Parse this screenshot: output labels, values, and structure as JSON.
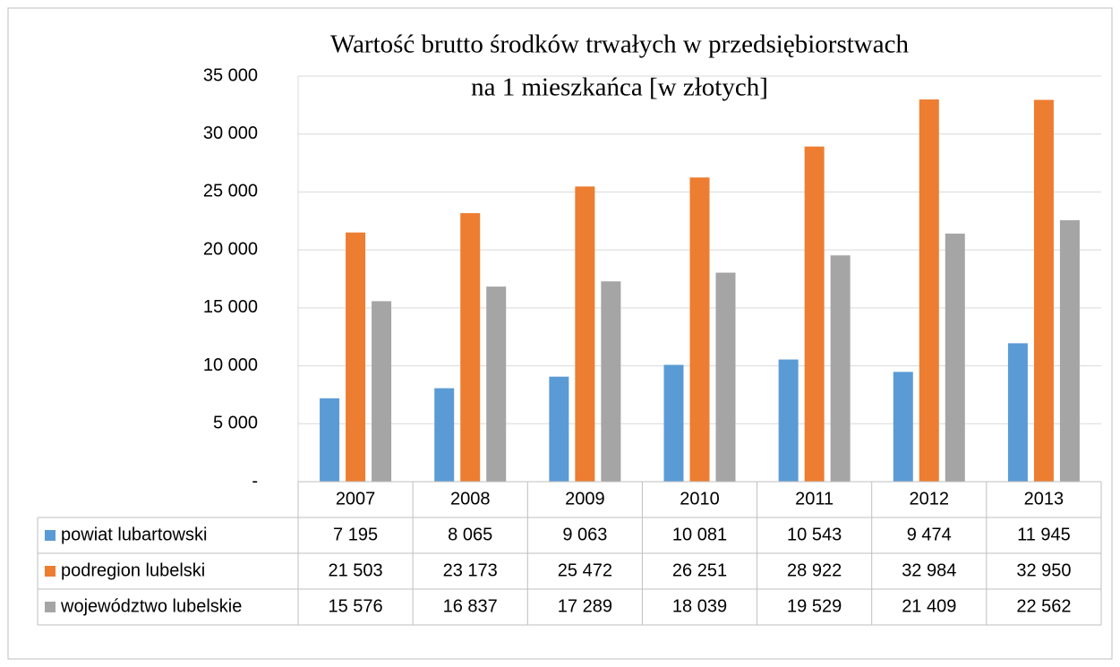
{
  "chart_data": {
    "type": "bar",
    "title": [
      "Wartość brutto środków trwałych w przedsiębiorstwach",
      "na 1 mieszkańca [w złotych]"
    ],
    "categories": [
      "2007",
      "2008",
      "2009",
      "2010",
      "2011",
      "2012",
      "2013"
    ],
    "series": [
      {
        "name": "powiat lubartowski",
        "color": "#5b9bd5",
        "values": [
          7195,
          8065,
          9063,
          10081,
          10543,
          9474,
          11945
        ],
        "value_labels": [
          "7 195",
          "8 065",
          "9 063",
          "10 081",
          "10 543",
          "9 474",
          "11 945"
        ]
      },
      {
        "name": "podregion lubelski",
        "color": "#ed7d31",
        "values": [
          21503,
          23173,
          25472,
          26251,
          28922,
          32984,
          32950
        ],
        "value_labels": [
          "21 503",
          "23 173",
          "25 472",
          "26 251",
          "28 922",
          "32 984",
          "32 950"
        ]
      },
      {
        "name": "województwo lubelskie",
        "color": "#a5a5a5",
        "values": [
          15576,
          16837,
          17289,
          18039,
          19529,
          21409,
          22562
        ],
        "value_labels": [
          "15 576",
          "16 837",
          "17 289",
          "18 039",
          "19 529",
          "21 409",
          "22 562"
        ]
      }
    ],
    "ylim": [
      0,
      35000
    ],
    "yticks": [
      {
        "value": 0,
        "label": "-"
      },
      {
        "value": 5000,
        "label": "5 000"
      },
      {
        "value": 10000,
        "label": "10 000"
      },
      {
        "value": 15000,
        "label": "15 000"
      },
      {
        "value": 20000,
        "label": "20 000"
      },
      {
        "value": 25000,
        "label": "25 000"
      },
      {
        "value": 30000,
        "label": "30 000"
      },
      {
        "value": 35000,
        "label": "35 000"
      }
    ],
    "grid": true
  }
}
